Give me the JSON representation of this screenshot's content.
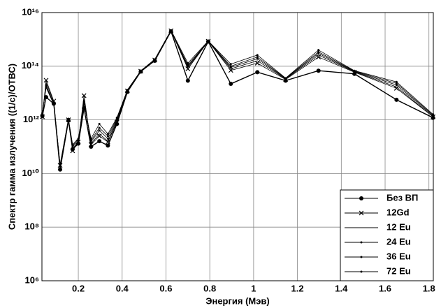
{
  "chart_data": {
    "type": "line",
    "x_label": "Энергия (Мэв)",
    "y_label": "Спектр гамма излучения ((1/с)/ОТВС)",
    "x": [
      0.036,
      0.053,
      0.088,
      0.117,
      0.155,
      0.174,
      0.2,
      0.226,
      0.258,
      0.296,
      0.335,
      0.376,
      0.424,
      0.485,
      0.549,
      0.623,
      0.7,
      0.793,
      0.896,
      1.017,
      1.146,
      1.296,
      1.46,
      1.652,
      1.819
    ],
    "series": [
      {
        "name": "Без ВП",
        "color": "#000000",
        "marker": "o",
        "values": [
          1400000000000.0,
          7000000000000.0,
          4000000000000.0,
          14000000000.0,
          950000000000.0,
          80000000000.0,
          130000000000.0,
          2700000000000.0,
          100000000000.0,
          160000000000.0,
          110000000000.0,
          700000000000.0,
          11000000000000.0,
          63000000000000.0,
          160000000000000.0,
          2000000000000000.0,
          29000000000000.0,
          830000000000000.0,
          22000000000000.0,
          60000000000000.0,
          29000000000000.0,
          68000000000000.0,
          52000000000000.0,
          5600000000000.0,
          1200000000000.0
        ]
      },
      {
        "name": "12Gd",
        "color": "#000000",
        "marker": "x",
        "values": [
          1300000000000.0,
          30000000000000.0,
          5000000000000.0,
          20000000000.0,
          1000000000000.0,
          70000000000.0,
          150000000000.0,
          8000000000000.0,
          120000000000.0,
          250000000000.0,
          150000000000.0,
          800000000000.0,
          12000000000000.0,
          65000000000000.0,
          170000000000000.0,
          2100000000000000.0,
          80000000000000.0,
          850000000000000.0,
          70000000000000.0,
          130000000000000.0,
          32000000000000.0,
          220000000000000.0,
          60000000000000.0,
          15000000000000.0,
          1300000000000.0
        ]
      },
      {
        "name": "12 Eu",
        "color": "#000000",
        "marker": "none",
        "values": [
          1500000000000.0,
          25000000000000.0,
          4500000000000.0,
          15000000000.0,
          900000000000.0,
          90000000000.0,
          140000000000.0,
          6000000000000.0,
          130000000000.0,
          300000000000.0,
          160000000000.0,
          900000000000.0,
          12000000000000.0,
          66000000000000.0,
          170000000000000.0,
          2100000000000000.0,
          90000000000000.0,
          860000000000000.0,
          80000000000000.0,
          160000000000000.0,
          33000000000000.0,
          260000000000000.0,
          62000000000000.0,
          17000000000000.0,
          1300000000000.0
        ]
      },
      {
        "name": "24 Eu",
        "color": "#000000",
        "marker": ".",
        "values": [
          1600000000000.0,
          20000000000000.0,
          4000000000000.0,
          18000000000.0,
          1000000000000.0,
          100000000000.0,
          160000000000.0,
          5000000000000.0,
          150000000000.0,
          400000000000.0,
          200000000000.0,
          1000000000000.0,
          12000000000000.0,
          66000000000000.0,
          170000000000000.0,
          2100000000000000.0,
          100000000000000.0,
          870000000000000.0,
          90000000000000.0,
          190000000000000.0,
          34000000000000.0,
          300000000000000.0,
          64000000000000.0,
          20000000000000.0,
          1400000000000.0
        ]
      },
      {
        "name": "36 Eu",
        "color": "#000000",
        "marker": ".",
        "values": [
          1700000000000.0,
          18000000000000.0,
          4000000000000.0,
          20000000000.0,
          1000000000000.0,
          110000000000.0,
          180000000000.0,
          4500000000000.0,
          170000000000.0,
          500000000000.0,
          250000000000.0,
          1100000000000.0,
          13000000000000.0,
          67000000000000.0,
          180000000000000.0,
          2100000000000000.0,
          110000000000000.0,
          870000000000000.0,
          100000000000000.0,
          220000000000000.0,
          35000000000000.0,
          340000000000000.0,
          66000000000000.0,
          23000000000000.0,
          1500000000000.0
        ]
      },
      {
        "name": "72 Eu",
        "color": "#000000",
        "marker": ".",
        "values": [
          1800000000000.0,
          16000000000000.0,
          3800000000000.0,
          22000000000.0,
          1100000000000.0,
          120000000000.0,
          200000000000.0,
          4000000000000.0,
          200000000000.0,
          700000000000.0,
          300000000000.0,
          1200000000000.0,
          13000000000000.0,
          68000000000000.0,
          180000000000000.0,
          2200000000000000.0,
          130000000000000.0,
          880000000000000.0,
          120000000000000.0,
          260000000000000.0,
          36000000000000.0,
          400000000000000.0,
          68000000000000.0,
          26000000000000.0,
          1600000000000.0
        ]
      }
    ],
    "xlim": [
      0.034,
      1.82
    ],
    "xticks": [
      0.2,
      0.4,
      0.6,
      0.8,
      1,
      1.2,
      1.4,
      1.6,
      1.8
    ],
    "ylim": [
      1000000.0,
      1e+16
    ],
    "yscale": "log",
    "yticks": [
      {
        "value": 1000000.0,
        "label": "10⁶"
      },
      {
        "value": 100000000.0,
        "label": "10⁸"
      },
      {
        "value": 10000000000.0,
        "label": "10¹⁰"
      },
      {
        "value": 1000000000000.0,
        "label": "10¹²"
      },
      {
        "value": 100000000000000.0,
        "label": "10¹⁴"
      },
      {
        "value": 1e+16,
        "label": "10¹⁶"
      }
    ],
    "grid": true,
    "legend": "lower right"
  }
}
